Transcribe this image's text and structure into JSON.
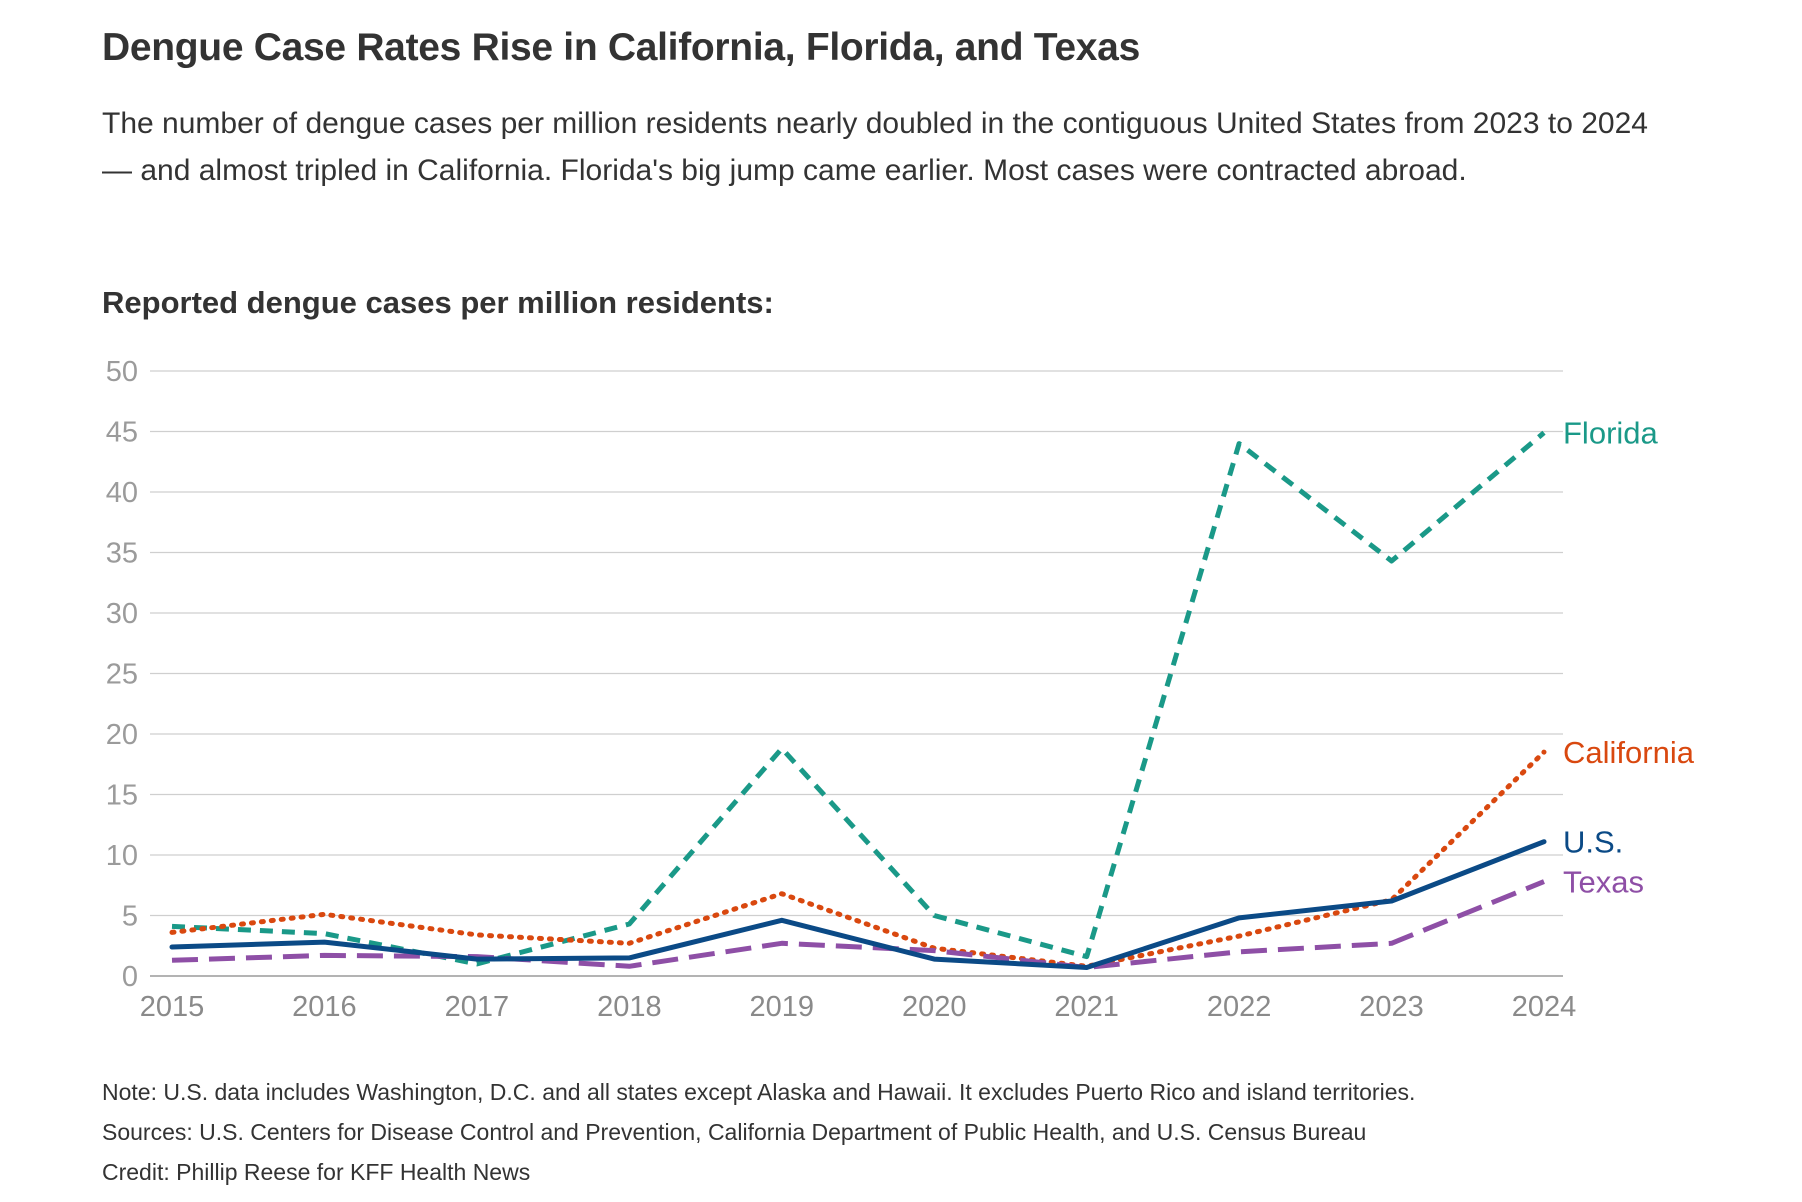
{
  "title": "Dengue Case Rates Rise in California, Florida, and Texas",
  "subtitle": "The number of dengue cases per million residents nearly doubled in the contiguous United States from 2023 to 2024 — and almost tripled in California. Florida's big jump came earlier. Most cases were contracted abroad.",
  "chart_heading": "Reported dengue cases per million residents:",
  "footer": {
    "note": "Note: U.S. data includes Washington, D.C. and all states except Alaska and Hawaii. It excludes Puerto Rico and island territories.",
    "sources": "Sources: U.S. Centers for Disease Control and Prevention, California Department of Public Health, and U.S. Census Bureau",
    "credit": "Credit: Phillip Reese for KFF Health News"
  },
  "chart_data": {
    "type": "line",
    "x": [
      2015,
      2016,
      2017,
      2018,
      2019,
      2020,
      2021,
      2022,
      2023,
      2024
    ],
    "ylim": [
      0,
      50
    ],
    "yticks": [
      0,
      5,
      10,
      15,
      20,
      25,
      30,
      35,
      40,
      45,
      50
    ],
    "grid": true,
    "legend": "direct labels at line ends",
    "series": [
      {
        "name": "Florida",
        "color": "#1a9988",
        "dash": "dashed",
        "values": [
          4.1,
          3.5,
          1.0,
          4.3,
          18.8,
          5.0,
          1.6,
          44.0,
          34.3,
          44.9
        ]
      },
      {
        "name": "California",
        "color": "#d9480f",
        "dash": "dotted",
        "values": [
          3.6,
          5.1,
          3.4,
          2.7,
          6.8,
          2.3,
          0.8,
          3.3,
          6.3,
          18.5
        ]
      },
      {
        "name": "U.S.",
        "color": "#0b4a86",
        "dash": "solid",
        "values": [
          2.4,
          2.8,
          1.4,
          1.5,
          4.6,
          1.4,
          0.7,
          4.8,
          6.2,
          11.1
        ]
      },
      {
        "name": "Texas",
        "color": "#8e4fa6",
        "dash": "longdash",
        "values": [
          1.3,
          1.7,
          1.6,
          0.8,
          2.7,
          2.1,
          0.7,
          2.0,
          2.7,
          7.8
        ]
      }
    ]
  }
}
